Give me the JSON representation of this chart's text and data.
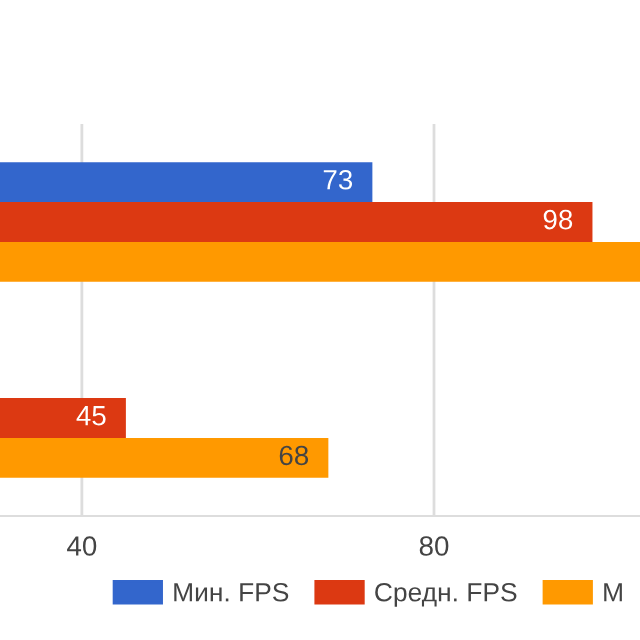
{
  "chart_data": {
    "type": "bar",
    "orientation": "horizontal",
    "categories": [
      null,
      null
    ],
    "series": [
      {
        "name": "Мин. FPS",
        "color": "#3366cc",
        "values": [
          73,
          null
        ],
        "value_labels": [
          "73",
          null
        ]
      },
      {
        "name": "Средн. FPS",
        "color": "#dc3912",
        "values": [
          98,
          45
        ],
        "value_labels": [
          "98",
          "45"
        ]
      },
      {
        "name": "М",
        "color": "#ff9900",
        "values": [
          103.4,
          68
        ],
        "value_labels": [
          null,
          "68"
        ]
      }
    ],
    "xlim": [
      30.7,
      103.4
    ],
    "xticks": [
      40,
      80
    ],
    "grid": "x",
    "legend": "bottom"
  }
}
